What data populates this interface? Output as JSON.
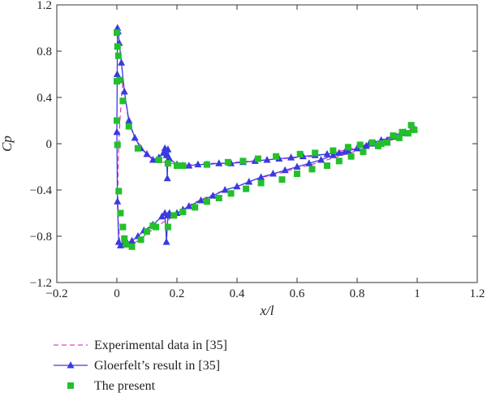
{
  "chart_data": {
    "type": "line",
    "title": "",
    "xlabel": "x/l",
    "ylabel": "Cp",
    "xlim": [
      -0.2,
      1.2
    ],
    "ylim": [
      -1.2,
      1.2
    ],
    "x_ticks": [
      -0.2,
      0,
      0.2,
      0.4,
      0.6,
      0.8,
      1,
      1.2
    ],
    "y_ticks": [
      -1.2,
      -0.8,
      -0.4,
      0,
      0.4,
      0.8,
      1.2
    ],
    "x_tick_labels": [
      "−0.2",
      "0",
      "0.2",
      "0.4",
      "0.6",
      "0.8",
      "1",
      "1.2"
    ],
    "y_tick_labels": [
      "−1.2",
      "−0.8",
      "−0.4",
      "0",
      "0.4",
      "0.8",
      "1.2"
    ],
    "grid": false,
    "legend_position": "bottom",
    "series": [
      {
        "name": "Experimental data in [35]",
        "color": "#e040c8",
        "style": "dashed",
        "x": [
          0.99,
          0.95,
          0.9,
          0.85,
          0.8,
          0.75,
          0.7,
          0.65,
          0.6,
          0.55,
          0.5,
          0.45,
          0.4,
          0.35,
          0.3,
          0.26,
          0.22,
          0.2,
          0.17,
          0.16,
          0.15,
          0.12,
          0.09,
          0.06,
          0.04,
          0.03,
          0.02,
          0.01,
          0.005,
          0.003,
          0.005,
          0.01,
          0.02,
          0.04,
          0.07,
          0.1,
          0.13,
          0.16,
          0.17,
          0.19,
          0.22,
          0.25,
          0.3,
          0.35,
          0.4,
          0.45,
          0.5,
          0.55,
          0.6,
          0.65,
          0.7,
          0.75,
          0.8,
          0.85,
          0.9,
          0.95,
          0.99
        ],
        "y": [
          0.14,
          0.1,
          0.05,
          0.01,
          -0.03,
          -0.06,
          -0.09,
          -0.11,
          -0.12,
          -0.13,
          -0.14,
          -0.15,
          -0.16,
          -0.17,
          -0.17,
          -0.18,
          -0.18,
          -0.18,
          -0.16,
          -0.16,
          -0.16,
          -0.13,
          -0.06,
          0.05,
          0.18,
          0.36,
          0.55,
          0.2,
          -0.1,
          -0.4,
          -0.7,
          -0.85,
          -0.9,
          -0.88,
          -0.84,
          -0.78,
          -0.72,
          -0.67,
          -0.66,
          -0.62,
          -0.57,
          -0.52,
          -0.46,
          -0.41,
          -0.37,
          -0.32,
          -0.28,
          -0.25,
          -0.21,
          -0.18,
          -0.14,
          -0.1,
          -0.06,
          -0.02,
          0.02,
          0.06,
          0.12
        ]
      },
      {
        "name": "Gloerfelt’s result in [35]",
        "color": "#3a3adf",
        "style": "solid",
        "marker": "triangle",
        "x": [
          0.99,
          0.96,
          0.93,
          0.9,
          0.86,
          0.83,
          0.8,
          0.77,
          0.74,
          0.7,
          0.66,
          0.62,
          0.58,
          0.54,
          0.5,
          0.46,
          0.42,
          0.38,
          0.34,
          0.3,
          0.27,
          0.24,
          0.22,
          0.2,
          0.175,
          0.17,
          0.168,
          0.165,
          0.16,
          0.155,
          0.14,
          0.12,
          0.1,
          0.08,
          0.06,
          0.04,
          0.025,
          0.015,
          0.008,
          0.004,
          0.002,
          0.001,
          0.0,
          0.002,
          0.006,
          0.012,
          0.02,
          0.035,
          0.05,
          0.07,
          0.09,
          0.12,
          0.15,
          0.16,
          0.165,
          0.17,
          0.175,
          0.2,
          0.22,
          0.24,
          0.28,
          0.32,
          0.36,
          0.4,
          0.44,
          0.48,
          0.52,
          0.56,
          0.6,
          0.64,
          0.68,
          0.72,
          0.76,
          0.8,
          0.84,
          0.88,
          0.92,
          0.96,
          0.99
        ],
        "y": [
          0.12,
          0.09,
          0.06,
          0.03,
          0.0,
          -0.02,
          -0.04,
          -0.06,
          -0.08,
          -0.09,
          -0.1,
          -0.11,
          -0.12,
          -0.13,
          -0.14,
          -0.15,
          -0.16,
          -0.17,
          -0.17,
          -0.18,
          -0.18,
          -0.19,
          -0.19,
          -0.18,
          -0.13,
          -0.05,
          -0.3,
          -0.1,
          -0.04,
          -0.08,
          -0.12,
          -0.14,
          -0.09,
          -0.04,
          0.05,
          0.2,
          0.45,
          0.7,
          0.87,
          0.97,
          1.0,
          0.6,
          0.1,
          -0.5,
          -0.85,
          -0.88,
          -0.87,
          -0.86,
          -0.84,
          -0.8,
          -0.75,
          -0.7,
          -0.63,
          -0.6,
          -0.85,
          -0.62,
          -0.6,
          -0.6,
          -0.57,
          -0.54,
          -0.49,
          -0.45,
          -0.4,
          -0.37,
          -0.33,
          -0.29,
          -0.26,
          -0.23,
          -0.2,
          -0.17,
          -0.14,
          -0.1,
          -0.07,
          -0.04,
          0.0,
          0.03,
          0.06,
          0.1,
          0.13
        ]
      },
      {
        "name": "The present",
        "color": "#22c02a",
        "style": "none",
        "marker": "square",
        "x": [
          0.98,
          0.95,
          0.92,
          0.88,
          0.85,
          0.81,
          0.77,
          0.72,
          0.66,
          0.61,
          0.53,
          0.47,
          0.42,
          0.37,
          0.3,
          0.22,
          0.2,
          0.17,
          0.14,
          0.07,
          0.04,
          0.02,
          0.01,
          0.005,
          0.002,
          0.0,
          0.0,
          0.0,
          0.002,
          0.006,
          0.012,
          0.02,
          0.025,
          0.03,
          0.05,
          0.08,
          0.1,
          0.12,
          0.13,
          0.17,
          0.19,
          0.22,
          0.26,
          0.3,
          0.34,
          0.38,
          0.43,
          0.48,
          0.55,
          0.6,
          0.65,
          0.7,
          0.74,
          0.78,
          0.82,
          0.87,
          0.9,
          0.94,
          0.97,
          0.99
        ],
        "y": [
          0.16,
          0.1,
          0.07,
          0.0,
          0.01,
          -0.01,
          -0.03,
          -0.06,
          -0.08,
          -0.09,
          -0.11,
          -0.13,
          -0.15,
          -0.16,
          -0.18,
          -0.19,
          -0.19,
          -0.17,
          -0.14,
          -0.04,
          0.15,
          0.37,
          0.55,
          0.76,
          0.84,
          0.96,
          0.54,
          0.2,
          -0.01,
          -0.41,
          -0.6,
          -0.72,
          -0.82,
          -0.87,
          -0.89,
          -0.83,
          -0.76,
          -0.71,
          -0.72,
          -0.72,
          -0.62,
          -0.59,
          -0.55,
          -0.5,
          -0.47,
          -0.43,
          -0.39,
          -0.34,
          -0.31,
          -0.26,
          -0.22,
          -0.19,
          -0.15,
          -0.11,
          -0.07,
          -0.02,
          0.01,
          0.05,
          0.09,
          0.12
        ]
      }
    ]
  }
}
